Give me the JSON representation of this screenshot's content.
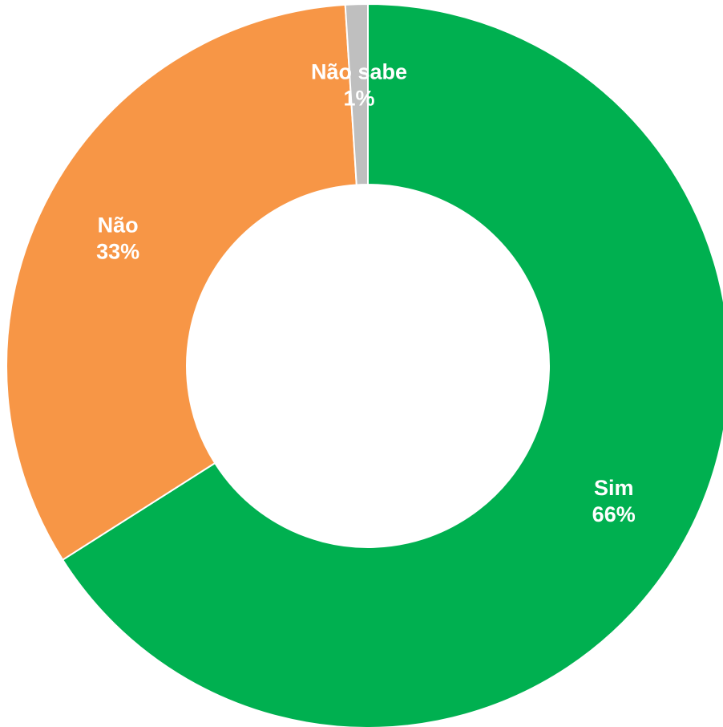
{
  "chart_data": {
    "type": "pie",
    "variant": "donut",
    "title": "",
    "categories": [
      "Sim",
      "Não",
      "Não sabe"
    ],
    "values": [
      66,
      33,
      1
    ],
    "percent_labels": [
      "66%",
      "33%",
      "1%"
    ],
    "colors": [
      "#00B050",
      "#F79646",
      "#BFBFBF"
    ],
    "start_angle_deg": 0,
    "direction": "clockwise",
    "legend": "none",
    "data_labels": "category and percent, inside slices, white bold"
  }
}
